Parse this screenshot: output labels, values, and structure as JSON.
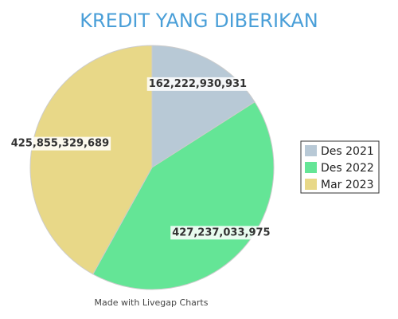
{
  "chart_data": {
    "type": "pie",
    "title": "KREDIT YANG DIBERIKAN",
    "categories": [
      "Des 2021",
      "Des 2022",
      "Mar 2023"
    ],
    "values": [
      162222930931,
      427237033975,
      425855329689
    ],
    "value_labels": [
      "162,222,930,931",
      "427,237,033,975",
      "425,855,329,689"
    ],
    "colors": [
      "#b8c9d6",
      "#64e596",
      "#e8d888"
    ],
    "legend": "right",
    "credit": "Made with Livegap Charts"
  }
}
